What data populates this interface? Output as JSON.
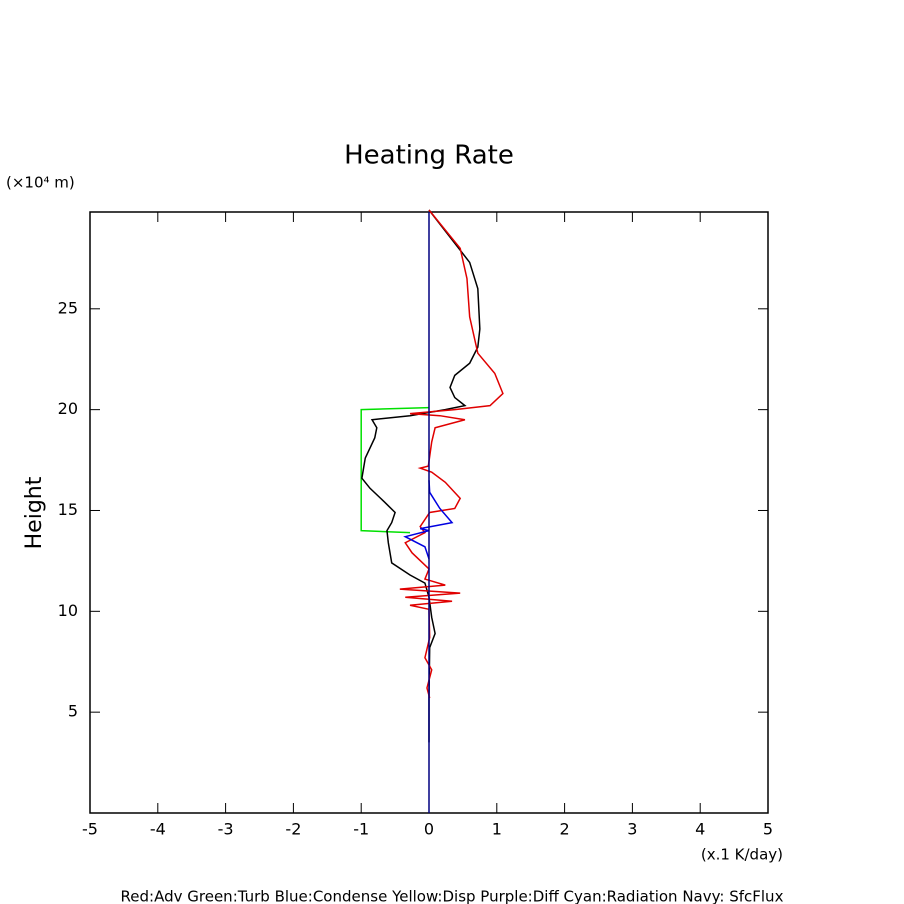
{
  "chart_data": {
    "type": "line",
    "title": "Heating Rate",
    "y_unit": "(×10⁴ m)",
    "y_label": "Height",
    "x_unit": "(x.1 K/day)",
    "legend_note": "Red:Adv  Green:Turb  Blue:Condense  Yellow:Disp  Purple:Diff  Cyan:Radiation  Navy: SfcFlux",
    "xlim": [
      -5,
      5
    ],
    "ylim": [
      0,
      29.8
    ],
    "xticks": [
      -5,
      -4,
      -3,
      -2,
      -1,
      0,
      1,
      2,
      3,
      4,
      5
    ],
    "yticks": [
      5,
      10,
      15,
      20,
      25
    ],
    "series": [
      {
        "color": "#00e000",
        "x": [
          0,
          -1.0,
          -1.0,
          -0.28
        ],
        "y": [
          20.1,
          20.0,
          14.0,
          13.9
        ]
      },
      {
        "color": "#000000",
        "x": [
          0,
          0.6,
          0.72,
          0.75,
          0.72,
          0.6,
          0.38,
          0.31,
          0.38,
          0.53,
          0.24,
          -0.28,
          -0.84,
          -0.77,
          -0.8,
          -0.94,
          -0.99,
          -0.87,
          -0.65,
          -0.5,
          -0.55,
          -0.62,
          -0.6,
          -0.55,
          -0.28,
          -0.06,
          0,
          0.04,
          0.09,
          0.01,
          0,
          0
        ],
        "y": [
          29.9,
          27.3,
          26,
          24,
          23.1,
          22.3,
          21.7,
          21.1,
          20.6,
          20.2,
          20.0,
          19.7,
          19.5,
          19.1,
          18.6,
          17.6,
          16.6,
          16.1,
          15.4,
          14.9,
          14.4,
          14.0,
          13.4,
          12.4,
          11.8,
          11.4,
          10.7,
          9.7,
          8.9,
          8.2,
          5.7,
          3.5
        ]
      },
      {
        "color": "#e00000",
        "x": [
          0,
          0.46,
          0.56,
          0.6,
          0.72,
          0.97,
          1.09,
          0.9,
          0.38,
          -0.28,
          0.16,
          0.53,
          0.09,
          0.04,
          -0.01,
          -0.13,
          0.04,
          0.24,
          0.46,
          0.38,
          0.01,
          -0.13,
          -0.06,
          -0.35,
          -0.25,
          0,
          -0.06,
          0.24,
          -0.43,
          0.46,
          -0.35,
          0.34,
          -0.28,
          0,
          0.01,
          -0.06,
          0.04,
          -0.03,
          0.01
        ],
        "y": [
          29.9,
          28,
          26.5,
          24.6,
          22.8,
          21.8,
          20.8,
          20.2,
          20.0,
          19.8,
          19.7,
          19.5,
          19.1,
          18.4,
          17.2,
          17.1,
          16.9,
          16.4,
          15.6,
          15.1,
          14.9,
          14.2,
          13.9,
          13.4,
          12.9,
          12.1,
          11.6,
          11.3,
          11.1,
          10.9,
          10.7,
          10.5,
          10.3,
          10.1,
          8.7,
          7.7,
          7.1,
          6.2,
          5.7
        ]
      },
      {
        "color": "#0000e0",
        "x": [
          0,
          0.01,
          0.16,
          0.34,
          -0.13,
          0,
          -0.35,
          -0.06,
          0
        ],
        "y": [
          16.5,
          15.9,
          15.1,
          14.4,
          14.1,
          14.0,
          13.7,
          13.2,
          12.6
        ]
      },
      {
        "color": "#000080",
        "x": [
          0,
          0
        ],
        "y": [
          0,
          29.8
        ]
      }
    ]
  }
}
